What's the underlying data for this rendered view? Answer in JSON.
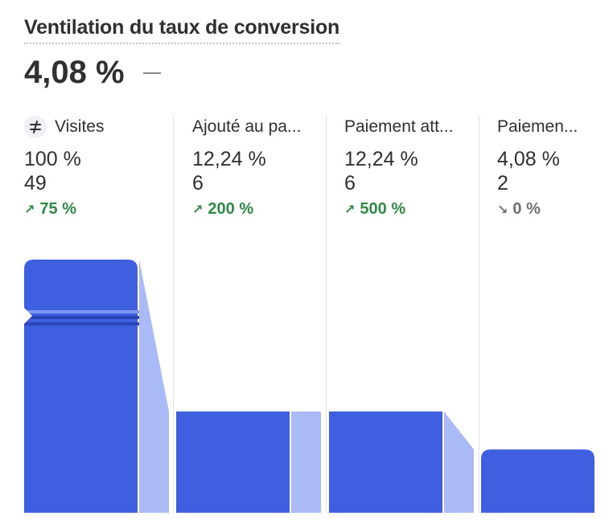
{
  "title": "Ventilation du taux de conversion",
  "summary": {
    "value": "4,08 %",
    "change": "—"
  },
  "colors": {
    "bar": "#3e5fe0",
    "connector_light": "#a9baf6",
    "positive": "#2f8a46",
    "neutral": "#6d7175"
  },
  "chart_data": {
    "type": "bar",
    "title": "Ventilation du taux de conversion",
    "categories": [
      "Visites",
      "Ajouté au pa...",
      "Paiement att...",
      "Paiemen..."
    ],
    "values": [
      49,
      6,
      6,
      2
    ],
    "rates": [
      "100 %",
      "12,24 %",
      "12,24 %",
      "4,08 %"
    ],
    "counts": [
      "49",
      "6",
      "6",
      "2"
    ],
    "changes": [
      {
        "text": "75 %",
        "direction": "up"
      },
      {
        "text": "200 %",
        "direction": "up"
      },
      {
        "text": "500 %",
        "direction": "up"
      },
      {
        "text": "0 %",
        "direction": "flat"
      }
    ],
    "level_fractions": [
      1.0,
      0.4,
      0.4,
      0.25
    ],
    "grid": false,
    "legend": "none"
  },
  "icons": {
    "first_column": "split-arrows-icon"
  }
}
